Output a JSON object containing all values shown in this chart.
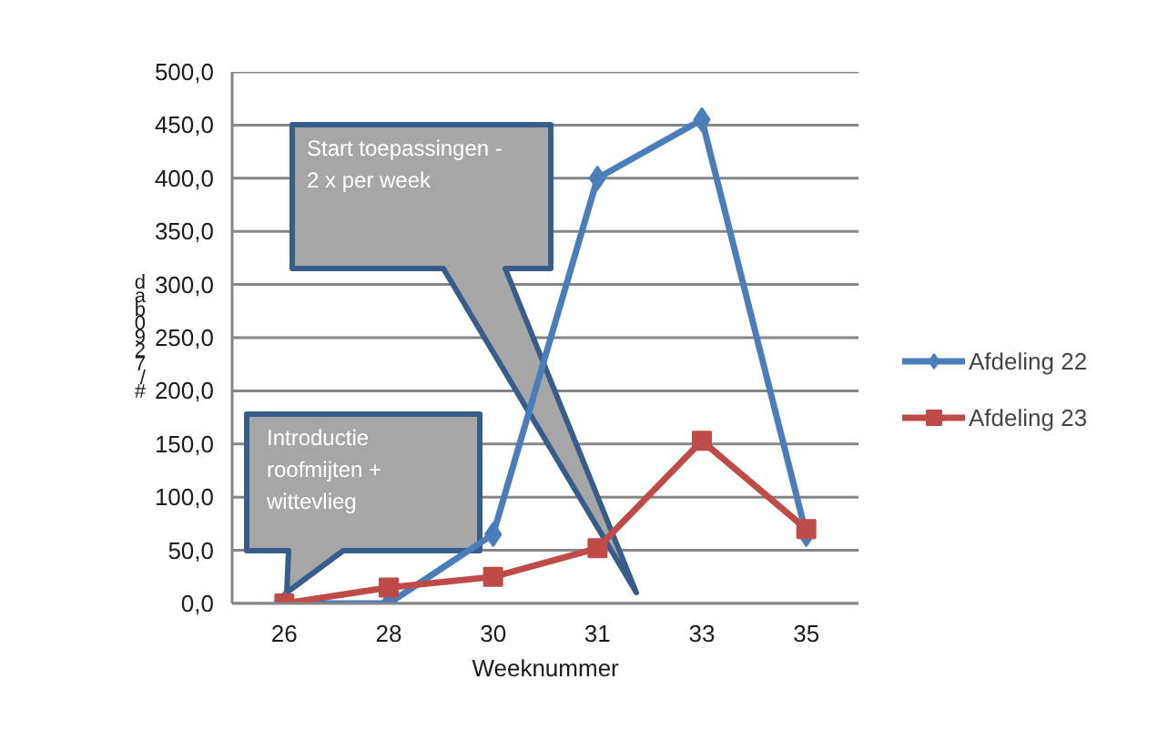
{
  "chart_data": {
    "type": "line",
    "xlabel": "Weeknummer",
    "ylabel": "dab0927/#",
    "categories": [
      "26",
      "28",
      "30",
      "31",
      "33",
      "35"
    ],
    "series": [
      {
        "name": "Afdeling 22",
        "color": "#4a7ebb",
        "marker": "diamond",
        "values": [
          0,
          0,
          65,
          400,
          455,
          65
        ]
      },
      {
        "name": "Afdeling 23",
        "color": "#be4b48",
        "marker": "square",
        "values": [
          0,
          15,
          25,
          52,
          153,
          70
        ]
      }
    ],
    "ylim": [
      0,
      500
    ],
    "yticks": [
      {
        "value": 0,
        "label": "0,0"
      },
      {
        "value": 50,
        "label": "50,0"
      },
      {
        "value": 100,
        "label": "100,0"
      },
      {
        "value": 150,
        "label": "150,0"
      },
      {
        "value": 200,
        "label": "200,0"
      },
      {
        "value": 250,
        "label": "250,0"
      },
      {
        "value": 300,
        "label": "300,0"
      },
      {
        "value": 350,
        "label": "350,0"
      },
      {
        "value": 400,
        "label": "400,0"
      },
      {
        "value": 450,
        "label": "450,0"
      },
      {
        "value": 500,
        "label": "500,0"
      }
    ],
    "grid": "y",
    "legend": "right",
    "annotations": [
      "Start toepassingen - 2 x per week",
      "Introductie roofmijten + wittevlieg"
    ]
  }
}
